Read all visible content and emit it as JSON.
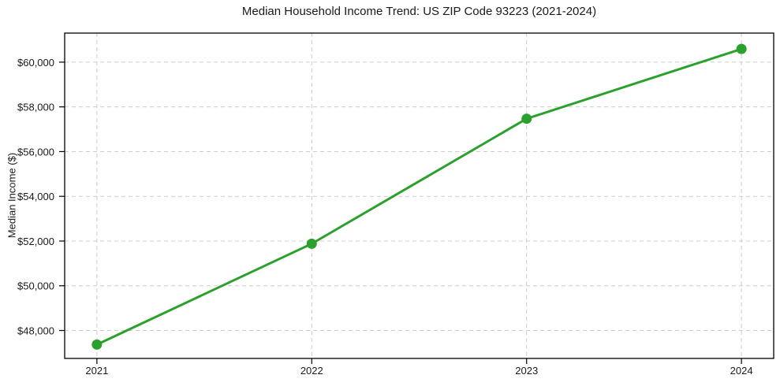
{
  "figure": {
    "background": "#ffffff"
  },
  "chart_data": {
    "type": "line",
    "title": "Median Household Income Trend: US ZIP Code 93223 (2021-2024)",
    "xlabel": "",
    "ylabel": "Median Income ($)",
    "x": [
      2021,
      2022,
      2023,
      2024
    ],
    "x_tick_labels": [
      "2021",
      "2022",
      "2023",
      "2024"
    ],
    "values": [
      47370,
      51880,
      57470,
      60590
    ],
    "xlim": [
      2020.85,
      2024.15
    ],
    "ylim": [
      46750,
      61300
    ],
    "yticks": [
      48000,
      50000,
      52000,
      54000,
      56000,
      58000,
      60000
    ],
    "ytick_labels": [
      "$48,000",
      "$50,000",
      "$52,000",
      "$54,000",
      "$56,000",
      "$58,000",
      "$60,000"
    ],
    "grid": true,
    "grid_style": "dashed",
    "legend": false,
    "marker": "circle",
    "line_color": "#2ca02c",
    "grid_color": "#cccccc",
    "spine_color": "#000000",
    "text_color": "#1a1a1a"
  }
}
